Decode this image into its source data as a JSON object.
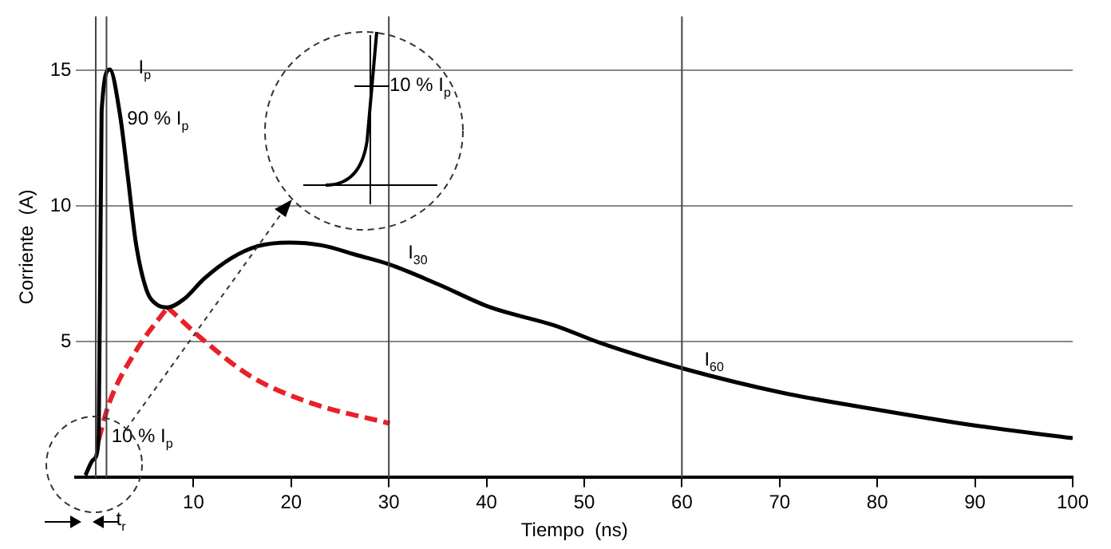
{
  "chart_data": {
    "type": "line",
    "xlabel": "Tiempo  (ns)",
    "ylabel": "Corriente  (A)",
    "xlim": [
      -2,
      100
    ],
    "ylim": [
      0,
      17
    ],
    "xticks": [
      10,
      20,
      30,
      40,
      50,
      60,
      70,
      80,
      90,
      100
    ],
    "yticks": [
      5,
      10,
      15
    ],
    "grid": "y",
    "legend": false,
    "marker": "none",
    "series": [
      {
        "color": "#000000",
        "line_style": "solid",
        "x": [
          -1.06,
          -0.24,
          0.3,
          0.6,
          1.43,
          2.47,
          3.28,
          4.1,
          5.17,
          6.26,
          7.35,
          8.98,
          11.1,
          13.9,
          16.6,
          19.8,
          23.1,
          26.9,
          30,
          35,
          40.4,
          46.9,
          51.8,
          60.4,
          70.2,
          80.5,
          90.3,
          100
        ],
        "values": [
          0.08,
          0.66,
          1.4,
          13.5,
          15.04,
          13.4,
          11.1,
          8.66,
          6.94,
          6.37,
          6.27,
          6.56,
          7.33,
          8.09,
          8.53,
          8.66,
          8.56,
          8.18,
          7.86,
          7.13,
          6.27,
          5.61,
          4.94,
          3.99,
          3.13,
          2.47,
          1.9,
          1.45
        ]
      },
      {
        "color": "#e8202a",
        "line_style": "dashed",
        "x": [
          0.3,
          1.38,
          4.1,
          7.35
        ],
        "values": [
          1.4,
          2.75,
          4.66,
          6.27
        ]
      },
      {
        "color": "#e8202a",
        "line_style": "dashed",
        "x": [
          7.35,
          11.1,
          16,
          22,
          30.1
        ],
        "values": [
          6.27,
          5.04,
          3.7,
          2.75,
          1.99
        ]
      }
    ],
    "ref_lines": [
      {
        "axis": "x",
        "value": 0,
        "label": null
      },
      {
        "axis": "x",
        "value": 1.1,
        "label": null
      },
      {
        "axis": "x",
        "value": 30,
        "label": null
      },
      {
        "axis": "x",
        "value": 60,
        "label": null
      }
    ],
    "annotations": [
      {
        "text": "I$_{p}$",
        "x": 1.43,
        "y": 15.04
      },
      {
        "text": "90 % I$_{p}$",
        "x": 0.6,
        "y": 13.5
      },
      {
        "text": "10 % I$_{p}$",
        "x": 0.3,
        "y": 1.5
      },
      {
        "text": "I$_{30}$",
        "x": 30,
        "y": 7.86
      },
      {
        "text": "I$_{60}$",
        "x": 60,
        "y": 3.99
      },
      {
        "text": "t$_{r}$",
        "x": 1.1,
        "y": 0
      },
      "10 % I$_{p}$"
    ]
  }
}
